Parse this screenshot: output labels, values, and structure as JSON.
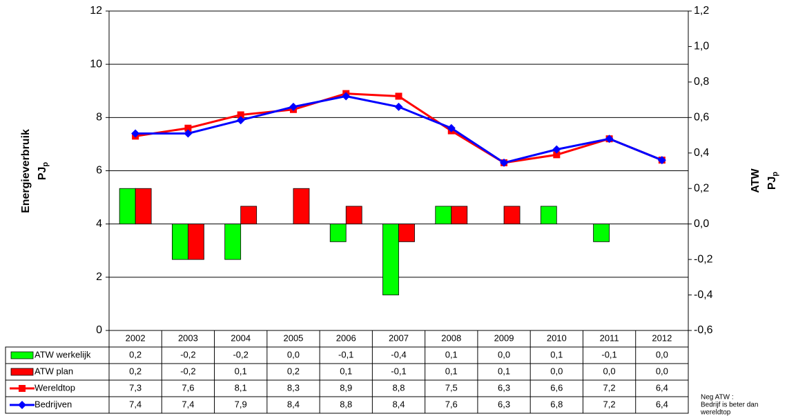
{
  "chart_data": {
    "type": "bar-line-table",
    "categories": [
      "2002",
      "2003",
      "2004",
      "2005",
      "2006",
      "2007",
      "2008",
      "2009",
      "2010",
      "2011",
      "2012"
    ],
    "series": [
      {
        "name": "ATW werkelijk",
        "kind": "bar",
        "axis": "y2",
        "color": "#00ff00",
        "values": [
          0.2,
          -0.2,
          -0.2,
          0.0,
          -0.1,
          -0.4,
          0.1,
          0.0,
          0.1,
          -0.1,
          0.0
        ],
        "value_labels": [
          "0,2",
          "-0,2",
          "-0,2",
          "0,0",
          "-0,1",
          "-0,4",
          "0,1",
          "0,0",
          "0,1",
          "-0,1",
          "0,0"
        ]
      },
      {
        "name": "ATW plan",
        "kind": "bar",
        "axis": "y2",
        "color": "#ff0000",
        "values": [
          0.2,
          -0.2,
          0.1,
          0.2,
          0.1,
          -0.1,
          0.1,
          0.1,
          0.0,
          0.0,
          0.0
        ],
        "value_labels": [
          "0,2",
          "-0,2",
          "0,1",
          "0,2",
          "0,1",
          "-0,1",
          "0,1",
          "0,1",
          "0,0",
          "0,0",
          "0,0"
        ]
      },
      {
        "name": "Wereldtop",
        "kind": "line",
        "marker": "square",
        "color": "#ff0000",
        "values": [
          7.3,
          7.6,
          8.1,
          8.3,
          8.9,
          8.8,
          7.5,
          6.3,
          6.6,
          7.2,
          6.4
        ],
        "value_labels": [
          "7,3",
          "7,6",
          "8,1",
          "8,3",
          "8,9",
          "8,8",
          "7,5",
          "6,3",
          "6,6",
          "7,2",
          "6,4"
        ]
      },
      {
        "name": "Bedrijven",
        "kind": "line",
        "marker": "diamond",
        "color": "#0000ff",
        "values": [
          7.4,
          7.4,
          7.9,
          8.4,
          8.8,
          8.4,
          7.6,
          6.3,
          6.8,
          7.2,
          6.4
        ],
        "value_labels": [
          "7,4",
          "7,4",
          "7,9",
          "8,4",
          "8,8",
          "8,4",
          "7,6",
          "6,3",
          "6,8",
          "7,2",
          "6,4"
        ]
      }
    ],
    "ylim": [
      0,
      12
    ],
    "yticks": [
      0,
      2,
      4,
      6,
      8,
      10,
      12
    ],
    "y2lim": [
      -0.6,
      1.2
    ],
    "y2ticks": [
      {
        "value": -0.6,
        "label": "-0,6"
      },
      {
        "value": -0.4,
        "label": "-0,4"
      },
      {
        "value": -0.2,
        "label": "-0,2"
      },
      {
        "value": 0,
        "label": "0,0"
      },
      {
        "value": 0.2,
        "label": "0,2"
      },
      {
        "value": 0.4,
        "label": "0,4"
      },
      {
        "value": 0.6,
        "label": "0,6"
      },
      {
        "value": 0.8,
        "label": "0,8"
      },
      {
        "value": 1.0,
        "label": "1,0"
      },
      {
        "value": 1.2,
        "label": "1,2"
      }
    ],
    "grid": true,
    "ylabel": "Energieverbruik",
    "yunit": "PJ",
    "yunit_sub": "p",
    "y2label": "ATW",
    "y2unit": "PJ",
    "y2unit_sub": "p",
    "note": [
      "Neg ATW :",
      "Bedrijf is beter dan",
      "wereldtop"
    ]
  }
}
